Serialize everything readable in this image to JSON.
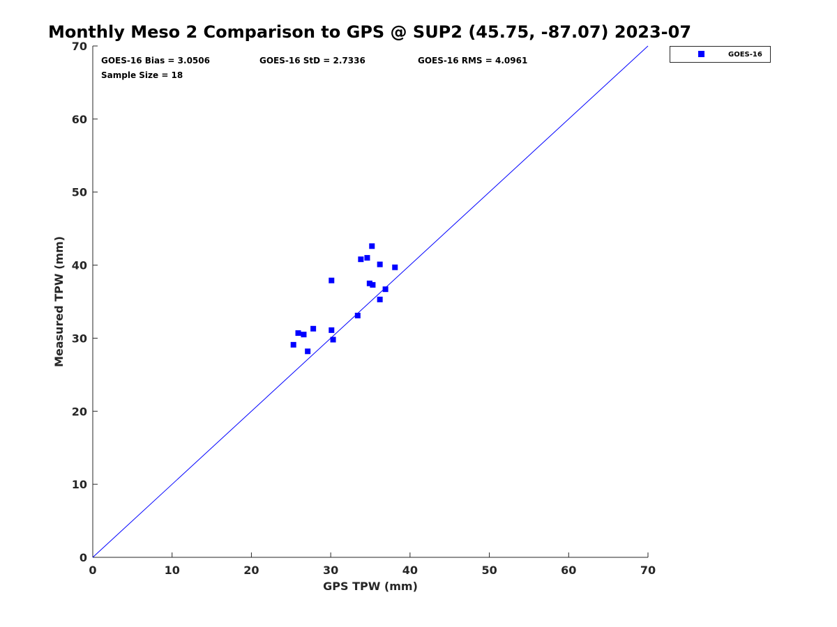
{
  "chart_data": {
    "type": "scatter",
    "title": "Monthly Meso 2 Comparison to GPS @ SUP2 (45.75, -87.07) 2023-07",
    "xlabel": "GPS TPW (mm)",
    "ylabel": "Measured TPW (mm)",
    "xlim": [
      0,
      70
    ],
    "ylim": [
      0,
      70
    ],
    "xticks": [
      "0",
      "10",
      "20",
      "30",
      "40",
      "50",
      "60",
      "70"
    ],
    "yticks": [
      "0",
      "10",
      "20",
      "30",
      "40",
      "50",
      "60",
      "70"
    ],
    "grid": false,
    "legend_position": "outside-top-right",
    "reference_line": {
      "x": [
        0,
        70
      ],
      "y": [
        0,
        70
      ],
      "color": "#0000ff"
    },
    "stats": {
      "bias": "GOES-16 Bias = 3.0506",
      "std": "GOES-16 StD = 2.7336",
      "rms": "GOES-16 RMS = 4.0961",
      "sample": "Sample Size = 18"
    },
    "series": [
      {
        "name": "GOES-16",
        "color": "#0000ff",
        "marker": "square",
        "points": [
          [
            25.3,
            29.1
          ],
          [
            25.9,
            30.7
          ],
          [
            26.6,
            30.5
          ],
          [
            27.1,
            28.2
          ],
          [
            27.8,
            31.3
          ],
          [
            30.1,
            37.9
          ],
          [
            30.1,
            31.1
          ],
          [
            30.3,
            29.8
          ],
          [
            33.4,
            33.1
          ],
          [
            33.8,
            40.8
          ],
          [
            34.6,
            41.0
          ],
          [
            34.9,
            37.5
          ],
          [
            35.2,
            42.6
          ],
          [
            35.3,
            37.3
          ],
          [
            36.2,
            40.1
          ],
          [
            36.2,
            35.3
          ],
          [
            36.9,
            36.7
          ],
          [
            38.1,
            39.7
          ]
        ]
      }
    ]
  }
}
